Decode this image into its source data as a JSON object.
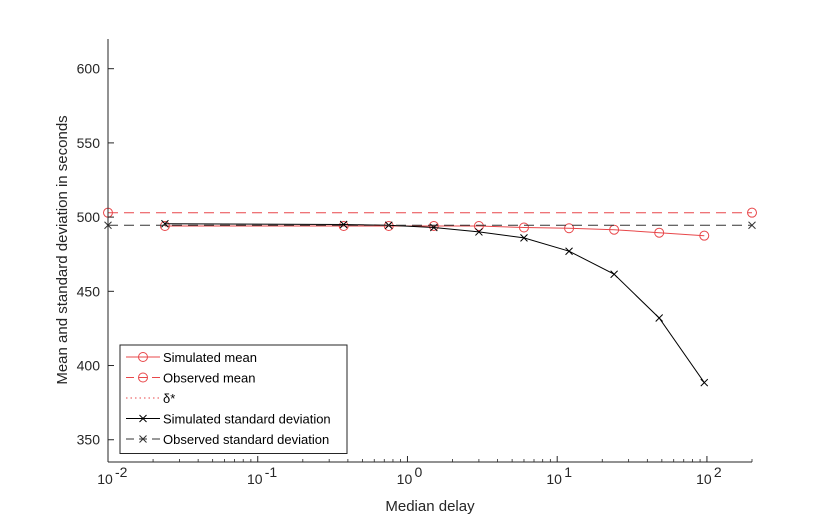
{
  "chart_data": {
    "type": "line",
    "xlabel": "Median delay",
    "ylabel": "Mean and standard deviation in seconds",
    "xscale": "log",
    "xlim": [
      0.01,
      200
    ],
    "ylim": [
      335,
      620
    ],
    "grid": false,
    "legend_position": "bottom-left",
    "x_ticks": [
      {
        "value": 0.01,
        "base": "10",
        "exp": "-2"
      },
      {
        "value": 0.1,
        "base": "10",
        "exp": "-1"
      },
      {
        "value": 1,
        "base": "10",
        "exp": "0"
      },
      {
        "value": 10,
        "base": "10",
        "exp": "1"
      },
      {
        "value": 100,
        "base": "10",
        "exp": "2"
      }
    ],
    "y_ticks": [
      {
        "value": 350,
        "label": "350"
      },
      {
        "value": 400,
        "label": "400"
      },
      {
        "value": 450,
        "label": "450"
      },
      {
        "value": 500,
        "label": "500"
      },
      {
        "value": 550,
        "label": "550"
      },
      {
        "value": 600,
        "label": "600"
      }
    ],
    "series": [
      {
        "name": "Simulated mean",
        "color": "#e8474a",
        "line": "solid",
        "marker": "circle",
        "x": [
          0.024,
          0.375,
          0.75,
          1.5,
          3,
          6,
          12,
          24,
          48,
          96
        ],
        "y": [
          494,
          494,
          494,
          494,
          494,
          493,
          492.5,
          491.5,
          489.5,
          487.5
        ]
      },
      {
        "name": "Observed mean",
        "color": "#e8474a",
        "line": "dashed",
        "marker": "circle",
        "x": [
          0.01,
          200
        ],
        "y": [
          503,
          503
        ]
      },
      {
        "name": "δ*",
        "color": "#e8474a",
        "line": "dotted",
        "marker": "none",
        "x": [],
        "y": []
      },
      {
        "name": "Simulated standard deviation",
        "color": "#000000",
        "line": "solid",
        "marker": "x",
        "x": [
          0.024,
          0.375,
          0.75,
          1.5,
          3,
          6,
          12,
          24,
          48,
          96
        ],
        "y": [
          495.5,
          495,
          494.5,
          493,
          490,
          486,
          477,
          461.5,
          432,
          388.5
        ]
      },
      {
        "name": "Observed standard deviation",
        "color": "#333333",
        "line": "dashed",
        "marker": "x",
        "x": [
          0.01,
          200
        ],
        "y": [
          494.5,
          494.5
        ]
      }
    ]
  }
}
